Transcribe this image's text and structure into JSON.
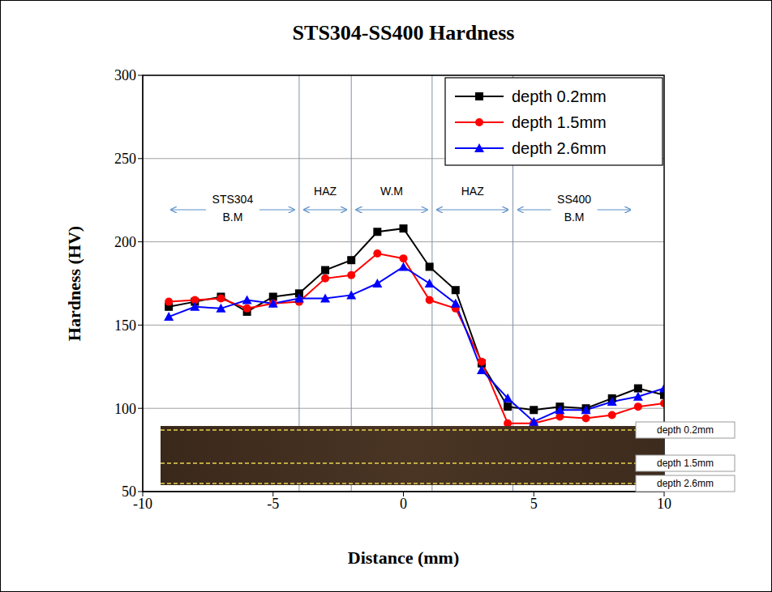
{
  "chart_data": {
    "type": "line",
    "title": "STS304-SS400 Hardness",
    "x_label": "Distance (mm)",
    "y_label": "Hardness (HV)",
    "x": [
      -9,
      -8,
      -7,
      -6,
      -5,
      -4,
      -3,
      -2,
      -1,
      0,
      1,
      2,
      3,
      4,
      5,
      6,
      7,
      8,
      9,
      10
    ],
    "series": [
      {
        "name": "depth 0.2mm",
        "color": "#000000",
        "marker": "square",
        "values": [
          161,
          164,
          167,
          158,
          167,
          169,
          183,
          189,
          206,
          208,
          185,
          171,
          127,
          101,
          99,
          101,
          100,
          106,
          112,
          108
        ]
      },
      {
        "name": "depth 1.5mm",
        "color": "#ff0000",
        "marker": "circle",
        "values": [
          164,
          165,
          166,
          160,
          163,
          164,
          178,
          180,
          193,
          190,
          165,
          160,
          128,
          91,
          91,
          95,
          94,
          96,
          101,
          103
        ]
      },
      {
        "name": "depth 2.6mm",
        "color": "#0000ff",
        "marker": "triangle",
        "values": [
          155,
          161,
          160,
          165,
          163,
          166,
          166,
          168,
          175,
          185,
          175,
          163,
          123,
          106,
          92,
          99,
          99,
          104,
          107,
          112
        ]
      }
    ],
    "xlim": [
      -10,
      10
    ],
    "xticks": [
      -10,
      -5,
      0,
      5,
      10
    ],
    "ylim": [
      50,
      300
    ],
    "yticks": [
      50,
      100,
      150,
      200,
      250,
      300
    ],
    "grid": true,
    "legend": "upper right",
    "annotations": {
      "regions": [
        {
          "label": "STS304 B.M",
          "start": -9.1,
          "end": -4
        },
        {
          "label": "HAZ",
          "start": -4,
          "end": -2
        },
        {
          "label": "W.M",
          "start": -2,
          "end": 1.1
        },
        {
          "label": "HAZ",
          "start": 1.1,
          "end": 4.2
        },
        {
          "label": "SS400 B.M",
          "start": 4.2,
          "end": 8.9
        }
      ],
      "photo_labels": [
        "depth 0.2mm",
        "depth 1.5mm",
        "depth 2.6mm"
      ]
    }
  }
}
